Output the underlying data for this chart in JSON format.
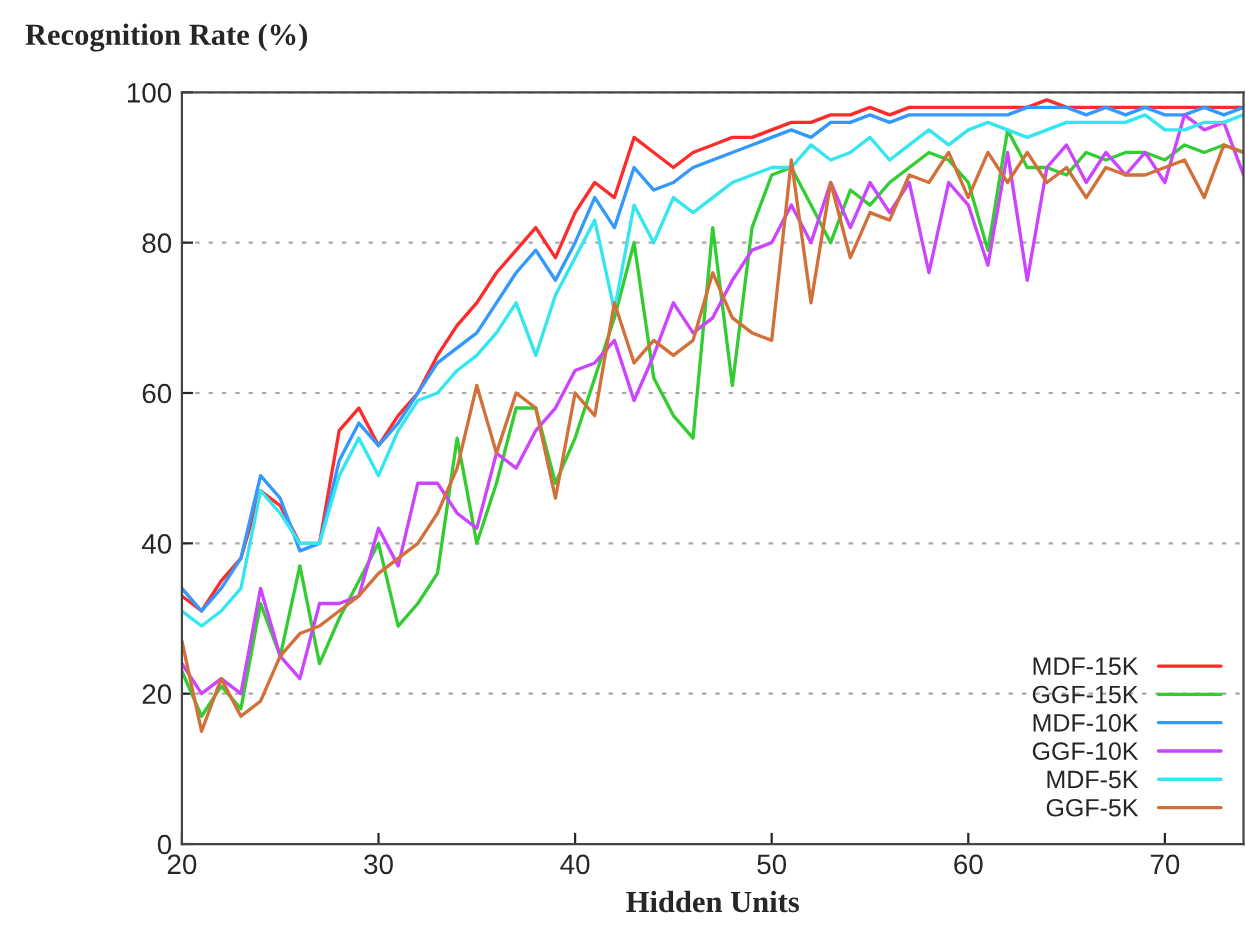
{
  "chart_data": {
    "type": "line",
    "ylabel": "Recognition Rate (%)",
    "xlabel": "Hidden Units",
    "x": [
      20,
      21,
      22,
      23,
      24,
      25,
      26,
      27,
      28,
      29,
      30,
      31,
      32,
      33,
      34,
      35,
      36,
      37,
      38,
      39,
      40,
      41,
      42,
      43,
      44,
      45,
      46,
      47,
      48,
      49,
      50,
      51,
      52,
      53,
      54,
      55,
      56,
      57,
      58,
      59,
      60,
      61,
      62,
      63,
      64,
      65,
      66,
      67,
      68,
      69,
      70,
      71,
      72,
      73,
      74
    ],
    "series": [
      {
        "name": "MDF-15K",
        "color": "#ff2a2a",
        "values": [
          33,
          31,
          35,
          38,
          47,
          45,
          40,
          40,
          55,
          58,
          53,
          57,
          60,
          65,
          69,
          72,
          76,
          79,
          82,
          78,
          84,
          88,
          86,
          94,
          92,
          90,
          92,
          93,
          94,
          94,
          95,
          96,
          96,
          97,
          97,
          98,
          97,
          98,
          98,
          98,
          98,
          98,
          98,
          98,
          99,
          98,
          98,
          98,
          98,
          98,
          98,
          98,
          98,
          98,
          98
        ]
      },
      {
        "name": "GGF-15K",
        "color": "#33cc33",
        "values": [
          23,
          17,
          21,
          18,
          32,
          25,
          37,
          24,
          30,
          35,
          40,
          29,
          32,
          36,
          54,
          40,
          48,
          58,
          58,
          48,
          54,
          62,
          70,
          80,
          62,
          57,
          54,
          82,
          61,
          82,
          89,
          90,
          85,
          80,
          87,
          85,
          88,
          90,
          92,
          91,
          88,
          79,
          95,
          90,
          90,
          89,
          92,
          91,
          92,
          92,
          91,
          93,
          92,
          93,
          92
        ]
      },
      {
        "name": "MDF-10K",
        "color": "#3399ff",
        "values": [
          34,
          31,
          34,
          38,
          49,
          46,
          39,
          40,
          51,
          56,
          53,
          56,
          60,
          64,
          66,
          68,
          72,
          76,
          79,
          75,
          80,
          86,
          82,
          90,
          87,
          88,
          90,
          91,
          92,
          93,
          94,
          95,
          94,
          96,
          96,
          97,
          96,
          97,
          97,
          97,
          97,
          97,
          97,
          98,
          98,
          98,
          97,
          98,
          97,
          98,
          97,
          97,
          98,
          97,
          98
        ]
      },
      {
        "name": "GGF-10K",
        "color": "#cc44ff",
        "values": [
          24,
          20,
          22,
          20,
          34,
          25,
          22,
          32,
          32,
          33,
          42,
          37,
          48,
          48,
          44,
          42,
          52,
          50,
          55,
          58,
          63,
          64,
          67,
          59,
          65,
          72,
          68,
          70,
          75,
          79,
          80,
          85,
          80,
          88,
          82,
          88,
          84,
          88,
          76,
          88,
          85,
          77,
          92,
          75,
          90,
          93,
          88,
          92,
          89,
          92,
          88,
          97,
          95,
          96,
          89
        ]
      },
      {
        "name": "MDF-5K",
        "color": "#33e6f0",
        "values": [
          31,
          29,
          31,
          34,
          47,
          44,
          40,
          40,
          49,
          54,
          49,
          55,
          59,
          60,
          63,
          65,
          68,
          72,
          65,
          73,
          78,
          83,
          71,
          85,
          80,
          86,
          84,
          86,
          88,
          89,
          90,
          90,
          93,
          91,
          92,
          94,
          91,
          93,
          95,
          93,
          95,
          96,
          95,
          94,
          95,
          96,
          96,
          96,
          96,
          97,
          95,
          95,
          96,
          96,
          97
        ]
      },
      {
        "name": "GGF-5K",
        "color": "#d2703a",
        "values": [
          27,
          15,
          22,
          17,
          19,
          25,
          28,
          29,
          31,
          33,
          36,
          38,
          40,
          44,
          50,
          61,
          52,
          60,
          58,
          46,
          60,
          57,
          72,
          64,
          67,
          65,
          67,
          76,
          70,
          68,
          67,
          91,
          72,
          88,
          78,
          84,
          83,
          89,
          88,
          92,
          86,
          92,
          88,
          92,
          88,
          90,
          86,
          90,
          89,
          89,
          90,
          91,
          86,
          93,
          92
        ]
      }
    ],
    "xlim": [
      20,
      74
    ],
    "xticks": [
      20,
      30,
      40,
      50,
      60,
      70
    ],
    "ylim": [
      0,
      100
    ],
    "yticks": [
      0,
      20,
      40,
      60,
      80,
      100
    ],
    "grid": "y",
    "legend": "bottom right",
    "line_style": "solid"
  }
}
